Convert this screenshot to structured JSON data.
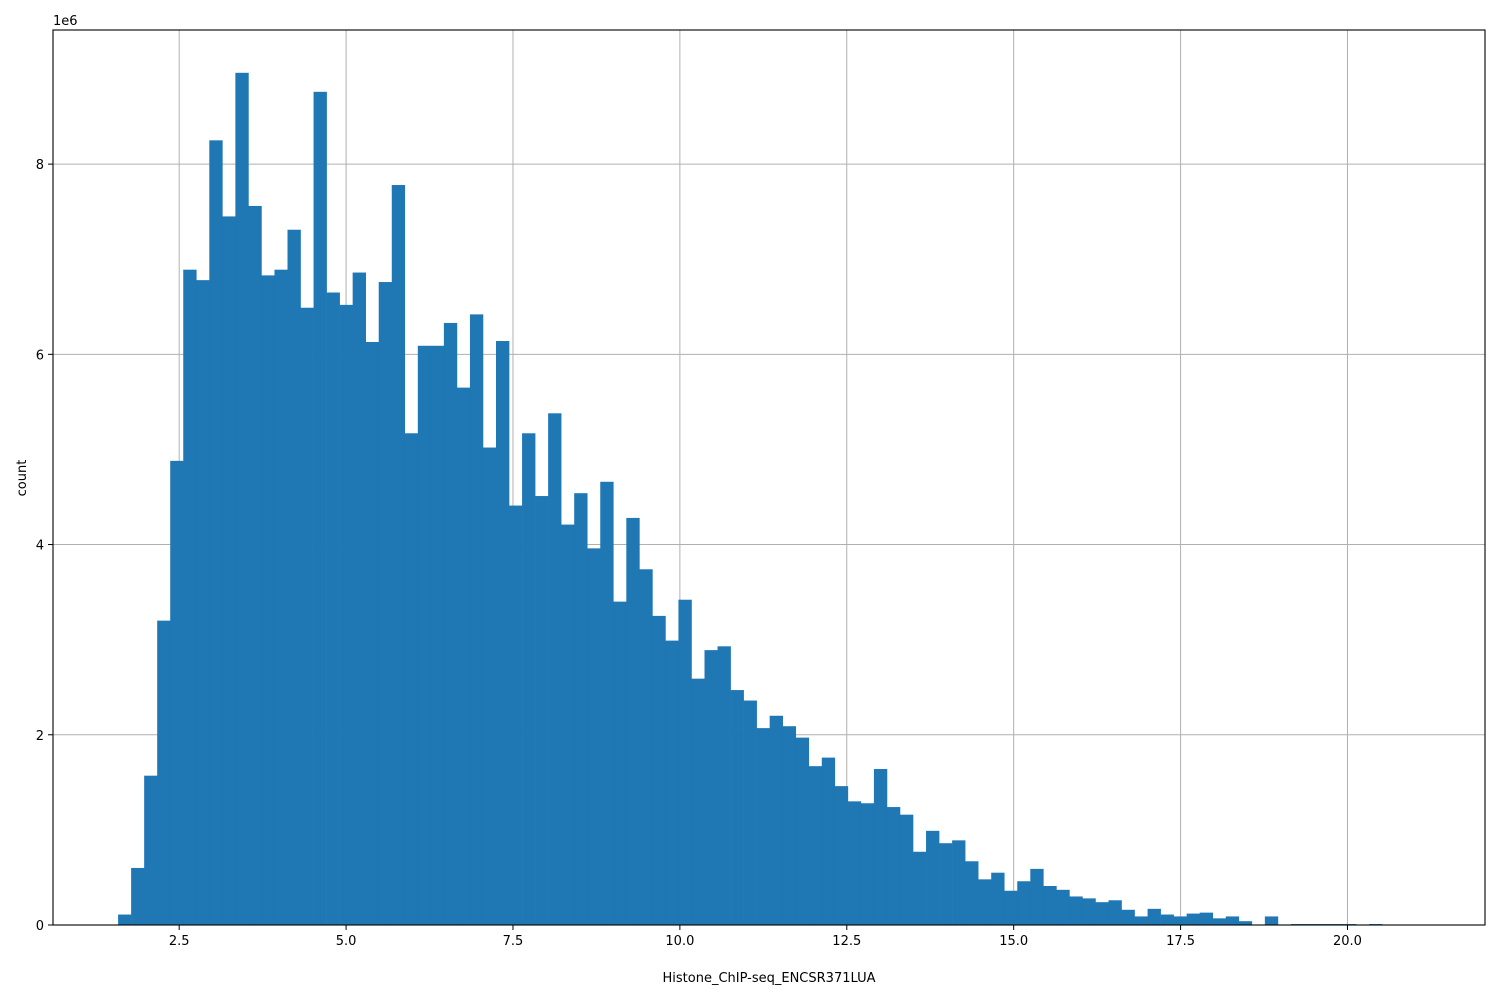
{
  "chart_data": {
    "type": "bar",
    "subtype": "histogram",
    "title": "",
    "xlabel": "Histone_ChIP-seq_ENCSR371LUA",
    "ylabel": "count",
    "y_offset_label": "1e6",
    "y_scale": 1000000,
    "xlim": [
      0.61,
      22.06
    ],
    "ylim": [
      0,
      9.41
    ],
    "x_ticks": [
      2.5,
      5.0,
      7.5,
      10.0,
      12.5,
      15.0,
      17.5,
      20.0
    ],
    "x_tick_labels": [
      "2.5",
      "5.0",
      "7.5",
      "10.0",
      "12.5",
      "15.0",
      "17.5",
      "20.0"
    ],
    "y_ticks": [
      0,
      2,
      4,
      6,
      8
    ],
    "y_tick_labels": [
      "0",
      "2",
      "4",
      "6",
      "8"
    ],
    "grid": true,
    "legend": null,
    "bar_color": "#1f77b4",
    "bin_start": 1.585,
    "bin_width": 0.1952,
    "bin_count": 100,
    "values": [
      0.11,
      0.6,
      1.57,
      3.2,
      4.88,
      6.89,
      6.78,
      8.25,
      7.45,
      8.96,
      7.56,
      6.83,
      6.89,
      7.31,
      6.49,
      8.76,
      6.65,
      6.52,
      6.86,
      6.13,
      6.76,
      7.78,
      5.17,
      6.09,
      6.09,
      6.33,
      5.65,
      6.42,
      5.02,
      6.14,
      4.41,
      5.17,
      4.51,
      5.38,
      4.21,
      4.54,
      3.96,
      4.66,
      3.4,
      4.28,
      3.74,
      3.25,
      2.99,
      3.42,
      2.59,
      2.89,
      2.93,
      2.47,
      2.36,
      2.07,
      2.2,
      2.09,
      1.97,
      1.67,
      1.76,
      1.46,
      1.3,
      1.28,
      1.64,
      1.24,
      1.16,
      0.77,
      0.99,
      0.86,
      0.89,
      0.67,
      0.48,
      0.55,
      0.36,
      0.46,
      0.59,
      0.41,
      0.37,
      0.3,
      0.28,
      0.24,
      0.26,
      0.16,
      0.09,
      0.17,
      0.11,
      0.09,
      0.12,
      0.13,
      0.07,
      0.09,
      0.04,
      0.005,
      0.09,
      0.005,
      0.01,
      0.01,
      0.01,
      0.01,
      0.01,
      0.0,
      0.01,
      0.0,
      0.0,
      0.0
    ]
  }
}
